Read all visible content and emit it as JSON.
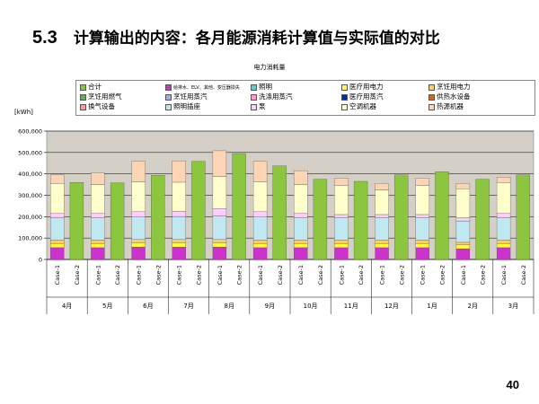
{
  "slide": {
    "number": "5.3",
    "title": "计算输出的内容：各月能源消耗计算值与实际值的对比",
    "page_number": "40"
  },
  "chart_data": {
    "type": "bar",
    "title": "电力消耗量",
    "ylabel": "[kWh]",
    "ylim": [
      0,
      600000
    ],
    "yticks": [
      "0",
      "100,000",
      "200,000",
      "300,000",
      "400,000",
      "500,000",
      "600,000"
    ],
    "grid": true,
    "legend_position": "top",
    "months": [
      "4月",
      "5月",
      "6月",
      "7月",
      "8月",
      "9月",
      "10月",
      "11月",
      "12月",
      "1月",
      "2月",
      "3月"
    ],
    "case_labels": [
      "Case-1",
      "Case-2"
    ],
    "legend": [
      {
        "name": "合计",
        "color": "#8cc63f"
      },
      {
        "name": "给排水、ELV、其他、变压器损失",
        "color": "#cc33cc"
      },
      {
        "name": "照明",
        "color": "#66cccc"
      },
      {
        "name": "医疗用电力",
        "color": "#ffff33"
      },
      {
        "name": "烹饪用电力",
        "color": "#ffcc66"
      },
      {
        "name": "烹饪用燃气",
        "color": "#66aa66"
      },
      {
        "name": "烹饪用蒸汽",
        "color": "#aaaadd"
      },
      {
        "name": "洗涤用蒸汽",
        "color": "#ff99cc"
      },
      {
        "name": "医疗用蒸汽",
        "color": "#003399"
      },
      {
        "name": "供热水设备",
        "color": "#cc6633"
      },
      {
        "name": "换气设备",
        "color": "#ff9999"
      },
      {
        "name": "照明插座",
        "color": "#bfe8f0"
      },
      {
        "name": "泵",
        "color": "#ffccff"
      },
      {
        "name": "空调机器",
        "color": "#ffffcc"
      },
      {
        "name": "热源机器",
        "color": "#fcd5b4"
      }
    ],
    "stack_series": [
      {
        "name": "给排水、ELV、其他、变压器损失",
        "color": "#cc33cc",
        "values": [
          55000,
          55000,
          58000,
          58000,
          58000,
          55000,
          55000,
          55000,
          55000,
          55000,
          50000,
          55000
        ]
      },
      {
        "name": "医疗用电力",
        "color": "#ffff33",
        "values": [
          20000,
          20000,
          20000,
          20000,
          20000,
          20000,
          20000,
          20000,
          20000,
          20000,
          18000,
          20000
        ]
      },
      {
        "name": "烹饪用电力",
        "color": "#ffcc66",
        "values": [
          15000,
          15000,
          15000,
          15000,
          15000,
          15000,
          15000,
          15000,
          15000,
          15000,
          12000,
          15000
        ]
      },
      {
        "name": "照明插座",
        "color": "#bfe8f0",
        "values": [
          105000,
          105000,
          105000,
          108000,
          110000,
          108000,
          105000,
          105000,
          105000,
          105000,
          100000,
          105000
        ]
      },
      {
        "name": "泵",
        "color": "#ffccff",
        "values": [
          20000,
          20000,
          25000,
          25000,
          35000,
          25000,
          20000,
          15000,
          15000,
          15000,
          15000,
          20000
        ]
      },
      {
        "name": "空调机器",
        "color": "#ffffcc",
        "values": [
          140000,
          135000,
          140000,
          135000,
          150000,
          140000,
          135000,
          135000,
          115000,
          135000,
          135000,
          145000
        ]
      },
      {
        "name": "热源机器",
        "color": "#fcd5b4",
        "values": [
          40000,
          55000,
          95000,
          100000,
          120000,
          95000,
          65000,
          35000,
          30000,
          35000,
          25000,
          25000
        ]
      }
    ],
    "case2_total": {
      "name": "合计",
      "color": "#8cc63f",
      "values": [
        360000,
        358000,
        393000,
        458000,
        495000,
        437000,
        375000,
        365000,
        395000,
        410000,
        375000,
        395000
      ]
    }
  }
}
